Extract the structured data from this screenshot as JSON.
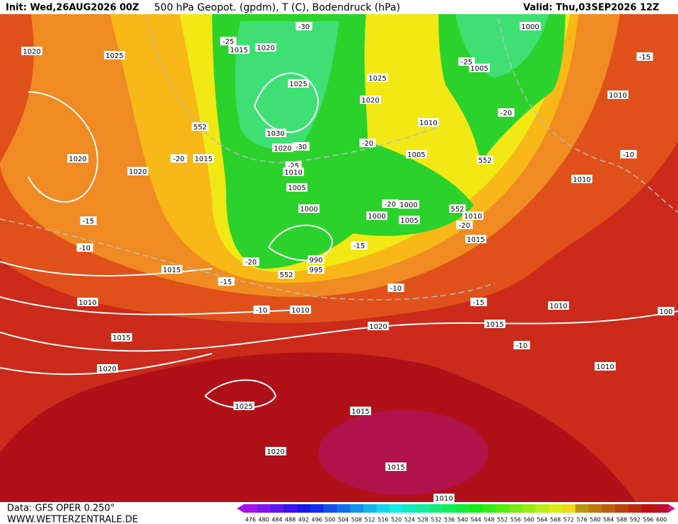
{
  "header": {
    "init": "Init: Wed,26AUG2026 00Z",
    "title": "500 hPa Geopot. (gpdm), T (C), Bodendruck (hPa)",
    "valid": "Valid: Thu,03SEP2026 12Z"
  },
  "map_labels": [
    "1020",
    "1025",
    "1015",
    "1020",
    "-30",
    "-25",
    "1000",
    "-15",
    "1005",
    "-25",
    "1025",
    "1025",
    "1020",
    "1010",
    "552",
    "1030",
    "-20",
    "1010",
    "1020",
    "-30",
    "-20",
    "1005",
    "552",
    "-10",
    "1020",
    "-20",
    "1015",
    "-25",
    "1010",
    "1020",
    "1010",
    "1005",
    "1000",
    "-20",
    "1000",
    "552",
    "1010",
    "1000",
    "1005",
    "-20",
    "-15",
    "1015",
    "-10",
    "-15",
    "990",
    "-20",
    "995",
    "552",
    "1015",
    "-15",
    "-10",
    "1010",
    "-15",
    "1010",
    "-10",
    "1010",
    "100",
    "1020",
    "1015",
    "1015",
    "-10",
    "1020",
    "1010",
    "1025",
    "1015",
    "1020",
    "1015",
    "1010"
  ],
  "scale": {
    "values": [
      476,
      480,
      484,
      488,
      492,
      496,
      500,
      504,
      508,
      512,
      516,
      520,
      524,
      528,
      532,
      536,
      540,
      544,
      548,
      552,
      556,
      560,
      564,
      568,
      572,
      576,
      580,
      584,
      588,
      592,
      596,
      600
    ]
  },
  "footer": {
    "source": "Data: GFS OPER 0.250°",
    "website": "WWW.WETTERZENTRALE.DE"
  }
}
